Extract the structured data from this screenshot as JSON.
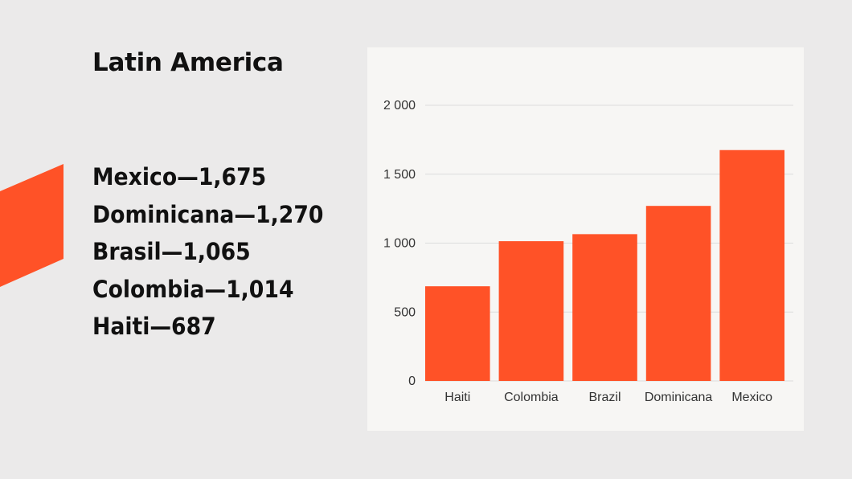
{
  "slide": {
    "title": "Latin America",
    "accent_color": "#ff5227",
    "stats": [
      "Mexico—1,675",
      "Dominicana—1,270",
      "Brasil—1,065",
      "Colombia—1,014",
      "Haiti—687"
    ]
  },
  "chart_data": {
    "type": "bar",
    "categories": [
      "Haiti",
      "Colombia",
      "Brazil",
      "Dominicana",
      "Mexico"
    ],
    "values": [
      687,
      1014,
      1065,
      1270,
      1675
    ],
    "ylim": [
      0,
      2000
    ],
    "yticks": [
      0,
      500,
      1000,
      1500,
      2000
    ],
    "ytick_labels": [
      "0",
      "500",
      "1 000",
      "1 500",
      "2 000"
    ],
    "title": "",
    "xlabel": "",
    "ylabel": "",
    "grid": true,
    "bar_color": "#ff5227",
    "grid_color": "#dcdcdc"
  }
}
